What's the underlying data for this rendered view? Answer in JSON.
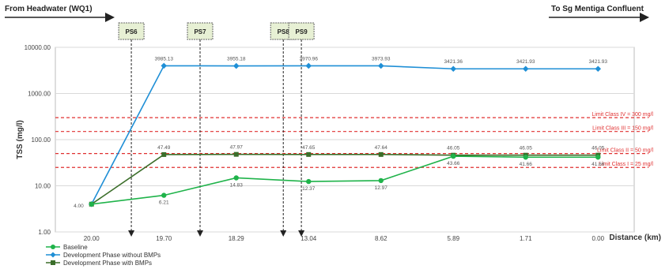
{
  "header": {
    "left_label": "From Headwater (WQ1)",
    "right_label": "To Sg Mentiga Confluent"
  },
  "chart_data": {
    "type": "line",
    "title": "",
    "xlabel": "Distance (km)",
    "ylabel": "TSS (mg/l)",
    "y_scale": "log",
    "ylim": [
      1,
      10000
    ],
    "y_ticks": [
      "1.00",
      "10.00",
      "100.00",
      "1000.00",
      "10000.00"
    ],
    "categories": [
      "20.00",
      "19.70",
      "18.29",
      "13.04",
      "8.62",
      "5.89",
      "1.71",
      "0.00"
    ],
    "series": [
      {
        "name": "Baseline",
        "color": "#1fb34a",
        "marker": "circle",
        "values": [
          4.0,
          6.21,
          14.83,
          12.37,
          12.97,
          43.66,
          41.66,
          41.66
        ],
        "labels": [
          "4.00",
          "6.21",
          "14.83",
          "12.37",
          "12.97",
          "43.66",
          "41.66",
          "41.66"
        ]
      },
      {
        "name": "Development Phase without BMPs",
        "color": "#1f8fd6",
        "marker": "diamond",
        "values": [
          4.0,
          3985.13,
          3955.18,
          3970.96,
          3973.93,
          3421.36,
          3421.93,
          3421.93
        ],
        "labels": [
          "",
          "3985.13",
          "3955.18",
          "3970.96",
          "3973.93",
          "3421.36",
          "3421.93",
          "3421.93"
        ]
      },
      {
        "name": "Development Phase with BMPs",
        "color": "#3b6e2a",
        "marker": "square",
        "values": [
          4.0,
          47.49,
          47.97,
          47.65,
          47.64,
          46.05,
          46.05,
          46.05
        ],
        "labels": [
          "",
          "47.49",
          "47.97",
          "47.65",
          "47.64",
          "46.05",
          "46.05",
          "46.05"
        ]
      }
    ],
    "limit_lines": [
      {
        "value": 300,
        "label": "Limit Class IV = 300 mg/l",
        "color": "#e03030"
      },
      {
        "value": 150,
        "label": "Limit Class III = 150 mg/l",
        "color": "#e03030"
      },
      {
        "value": 50,
        "label": "Limit Class II = 50 mg/l",
        "color": "#e03030"
      },
      {
        "value": 25,
        "label": "Limit Class I = 25 mg/l",
        "color": "#e03030"
      }
    ],
    "stations": [
      {
        "name": "PS6",
        "distance_between": [
          "20.00",
          "19.70"
        ],
        "frac": 0.55
      },
      {
        "name": "PS7",
        "distance_between": [
          "19.70",
          "18.29"
        ],
        "frac": 0.5
      },
      {
        "name": "PS8",
        "distance_between": [
          "18.29",
          "13.04"
        ],
        "frac": 0.65
      },
      {
        "name": "PS9",
        "distance_between": [
          "18.29",
          "13.04"
        ],
        "frac": 0.9
      }
    ],
    "grid": true,
    "legend_position": "bottom-left"
  }
}
